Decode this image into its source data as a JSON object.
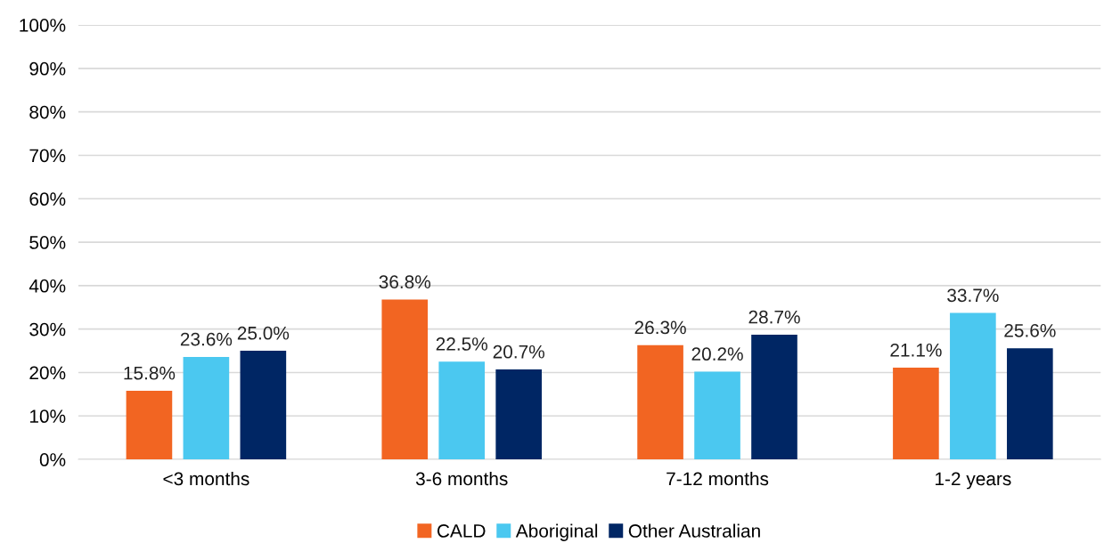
{
  "chart_data": {
    "type": "bar",
    "categories": [
      "<3 months",
      "3-6 months",
      "7-12 months",
      "1-2 years"
    ],
    "series": [
      {
        "name": "CALD",
        "color": "#f26522",
        "values": [
          15.8,
          36.8,
          26.3,
          21.1
        ],
        "value_labels": [
          "15.8%",
          "36.8%",
          "26.3%",
          "21.1%"
        ]
      },
      {
        "name": "Aboriginal",
        "color": "#4bc8f0",
        "values": [
          23.6,
          22.5,
          20.2,
          33.7
        ],
        "value_labels": [
          "23.6%",
          "22.5%",
          "20.2%",
          "33.7%"
        ]
      },
      {
        "name": "Other Australian",
        "color": "#002664",
        "values": [
          25.0,
          20.7,
          28.7,
          25.6
        ],
        "value_labels": [
          "25.0%",
          "20.7%",
          "28.7%",
          "25.6%"
        ]
      }
    ],
    "ylim": [
      0,
      100
    ],
    "yticks": [
      {
        "value": 0,
        "label": "0%"
      },
      {
        "value": 10,
        "label": "10%"
      },
      {
        "value": 20,
        "label": "20%"
      },
      {
        "value": 30,
        "label": "30%"
      },
      {
        "value": 40,
        "label": "40%"
      },
      {
        "value": 50,
        "label": "50%"
      },
      {
        "value": 60,
        "label": "60%"
      },
      {
        "value": 70,
        "label": "70%"
      },
      {
        "value": 80,
        "label": "80%"
      },
      {
        "value": 90,
        "label": "90%"
      },
      {
        "value": 100,
        "label": "100%"
      }
    ],
    "grid": "y",
    "legend": "bottom"
  }
}
